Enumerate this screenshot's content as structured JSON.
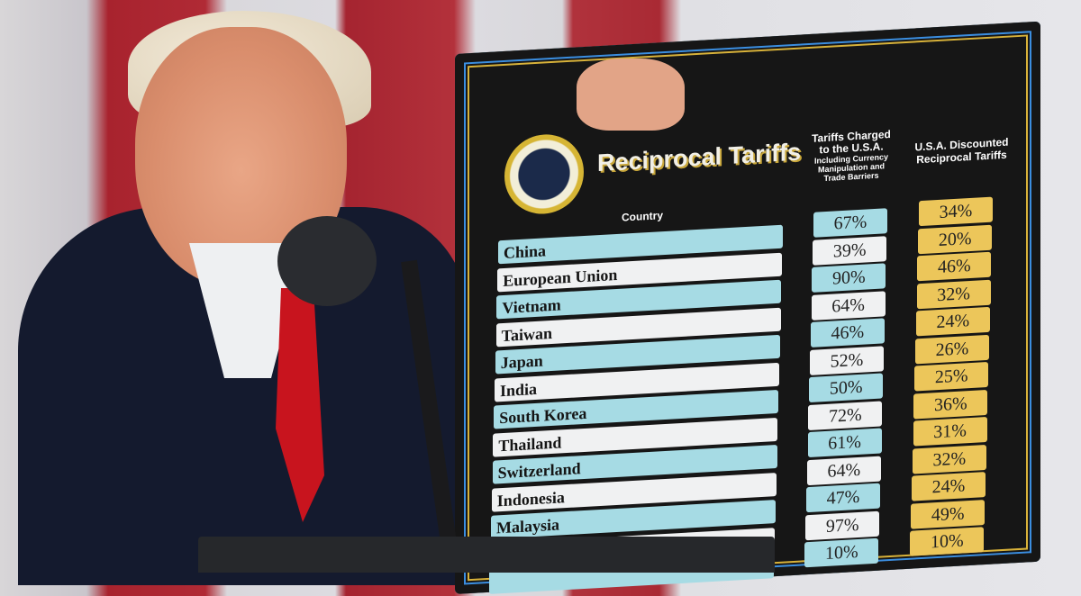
{
  "board": {
    "title": "Reciprocal Tariffs",
    "seal_text": "SEAL OF THE PRESIDENT OF THE UNITED STATES",
    "header_country": "Country",
    "header_charged": "Tariffs Charged to the U.S.A.",
    "header_charged_sub": "Including Currency Manipulation and Trade Barriers",
    "header_discounted": "U.S.A. Discounted Reciprocal Tariffs",
    "rows": [
      {
        "country": "China",
        "charged": "67%",
        "discounted": "34%"
      },
      {
        "country": "European Union",
        "charged": "39%",
        "discounted": "20%"
      },
      {
        "country": "Vietnam",
        "charged": "90%",
        "discounted": "46%"
      },
      {
        "country": "Taiwan",
        "charged": "64%",
        "discounted": "32%"
      },
      {
        "country": "Japan",
        "charged": "46%",
        "discounted": "24%"
      },
      {
        "country": "India",
        "charged": "52%",
        "discounted": "26%"
      },
      {
        "country": "South Korea",
        "charged": "50%",
        "discounted": "25%"
      },
      {
        "country": "Thailand",
        "charged": "72%",
        "discounted": "36%"
      },
      {
        "country": "Switzerland",
        "charged": "61%",
        "discounted": "31%"
      },
      {
        "country": "Indonesia",
        "charged": "64%",
        "discounted": "32%"
      },
      {
        "country": "Malaysia",
        "charged": "47%",
        "discounted": "24%"
      },
      {
        "country": "",
        "charged": "97%",
        "discounted": "49%"
      },
      {
        "country": "",
        "charged": "10%",
        "discounted": "10%"
      }
    ]
  },
  "colors": {
    "teal": "#a6dbe4",
    "gold": "#ecc65a",
    "board": "#161616",
    "tie": "#c8141e"
  }
}
